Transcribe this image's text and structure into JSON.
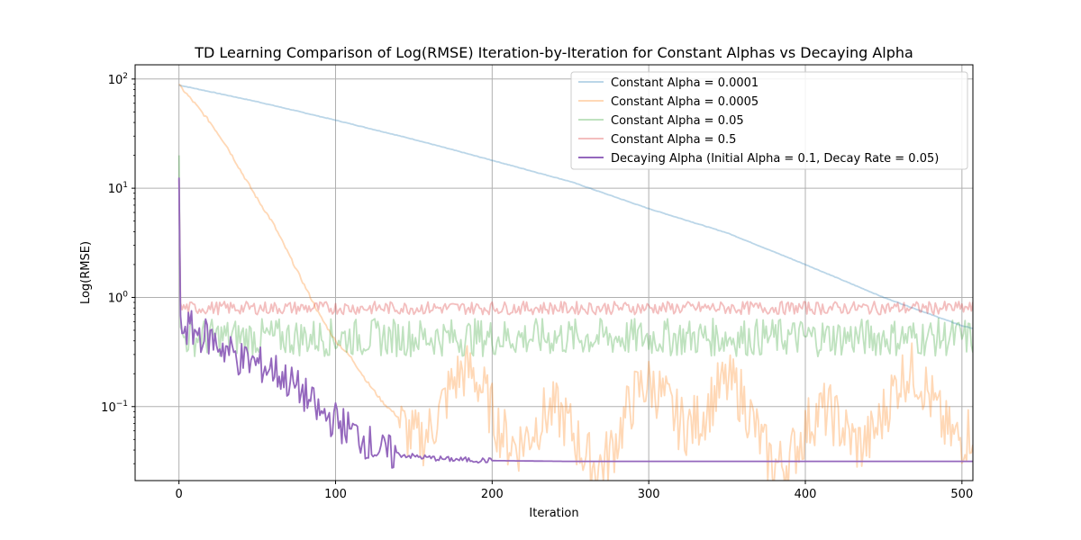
{
  "chart_data": {
    "type": "line",
    "title": "TD Learning Comparison of Log(RMSE) Iteration-by-Iteration for Constant Alphas vs Decaying Alpha",
    "xlabel": "Iteration",
    "ylabel": "Log(RMSE)",
    "xlim": [
      -28,
      507
    ],
    "ylim": [
      0.021,
      135
    ],
    "yscale": "log",
    "x_ticks": [
      0,
      100,
      200,
      300,
      400,
      500
    ],
    "y_ticks": [
      0.1,
      1,
      10,
      100
    ],
    "y_tick_labels": [
      {
        "base": "10",
        "exp": "−1"
      },
      {
        "base": "10",
        "exp": "0"
      },
      {
        "base": "10",
        "exp": "1"
      },
      {
        "base": "10",
        "exp": "2"
      }
    ],
    "grid": true,
    "legend_position": "top-right",
    "series": [
      {
        "name": "Constant Alpha = 0.0001",
        "color": "#1f77b4",
        "opacity": 0.3,
        "style": "smooth",
        "points": [
          [
            0,
            88
          ],
          [
            50,
            62
          ],
          [
            100,
            42
          ],
          [
            150,
            28
          ],
          [
            200,
            18
          ],
          [
            250,
            11.5
          ],
          [
            300,
            6.5
          ],
          [
            350,
            3.9
          ],
          [
            400,
            2.0
          ],
          [
            450,
            1.0
          ],
          [
            500,
            0.55
          ],
          [
            507,
            0.52
          ]
        ]
      },
      {
        "name": "Constant Alpha = 0.0005",
        "color": "#ff7f0e",
        "opacity": 0.3,
        "style": "drop_noise",
        "points": [
          [
            0,
            88
          ],
          [
            10,
            60
          ],
          [
            20,
            40
          ],
          [
            30,
            25
          ],
          [
            40,
            14
          ],
          [
            50,
            8
          ],
          [
            60,
            4.8
          ],
          [
            70,
            2.5
          ],
          [
            80,
            1.3
          ],
          [
            90,
            0.68
          ],
          [
            100,
            0.4
          ],
          [
            110,
            0.28
          ],
          [
            120,
            0.17
          ],
          [
            130,
            0.11
          ],
          [
            140,
            0.08
          ]
        ],
        "noise_mean": 0.075,
        "noise_spread": 0.55
      },
      {
        "name": "Constant Alpha = 0.05",
        "color": "#2ca02c",
        "opacity": 0.3,
        "style": "noise",
        "start": 20,
        "noise_mean": 0.43,
        "noise_spread": 0.35
      },
      {
        "name": "Constant Alpha = 0.5",
        "color": "#d62728",
        "opacity": 0.3,
        "style": "noise",
        "start": 12,
        "noise_mean": 0.8,
        "noise_spread": 0.12
      },
      {
        "name": "Decaying Alpha (Initial Alpha = 0.1, Decay Rate = 0.05)",
        "color": "#9467bd",
        "opacity": 1.0,
        "style": "decay",
        "start": 12.5,
        "points": [
          [
            1,
            0.56
          ],
          [
            20,
            0.42
          ],
          [
            40,
            0.27
          ],
          [
            60,
            0.22
          ],
          [
            70,
            0.17
          ],
          [
            80,
            0.13
          ],
          [
            90,
            0.085
          ],
          [
            100,
            0.075
          ],
          [
            110,
            0.06
          ],
          [
            120,
            0.048
          ],
          [
            130,
            0.038
          ],
          [
            150,
            0.035
          ],
          [
            170,
            0.033
          ],
          [
            200,
            0.032
          ],
          [
            250,
            0.0315
          ],
          [
            507,
            0.0315
          ]
        ]
      }
    ]
  }
}
